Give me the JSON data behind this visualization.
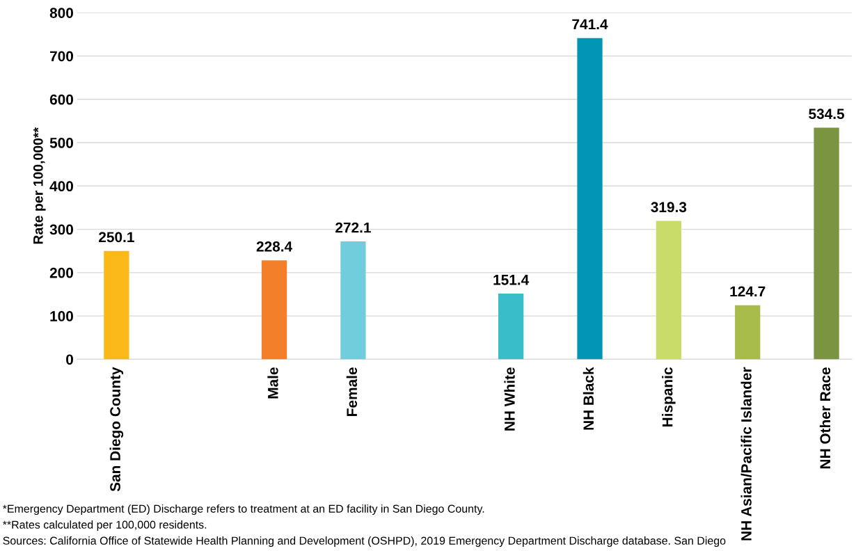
{
  "chart_data": {
    "type": "bar",
    "ylabel": "Rate per 100,000**",
    "categories": [
      "San Diego County",
      null,
      "Male",
      "Female",
      null,
      "NH White",
      "NH Black",
      "Hispanic",
      "NH Asian/Pacific Islander",
      "NH Other Race"
    ],
    "values": [
      250.1,
      null,
      228.4,
      272.1,
      null,
      151.4,
      741.4,
      319.3,
      124.7,
      534.5
    ],
    "colors": [
      "#fbb919",
      "#ffffff",
      "#f47f2a",
      "#71cddc",
      "#ffffff",
      "#38bec9",
      "#0096b4",
      "#c9dc6a",
      "#a6bb4a",
      "#7a9442"
    ],
    "data_labels": true,
    "ylim": [
      0,
      800
    ],
    "yticks": [
      0,
      100,
      200,
      300,
      400,
      500,
      600,
      700,
      800
    ],
    "grid": "y",
    "annotations": [
      "*Emergency Department (ED) Discharge refers to treatment at an ED facility in San Diego County.",
      "**Rates calculated per 100,000 residents.",
      "Sources: California Office of Statewide Health Planning and Development (OSHPD), 2019 Emergency Department Discharge database. San Diego"
    ]
  }
}
